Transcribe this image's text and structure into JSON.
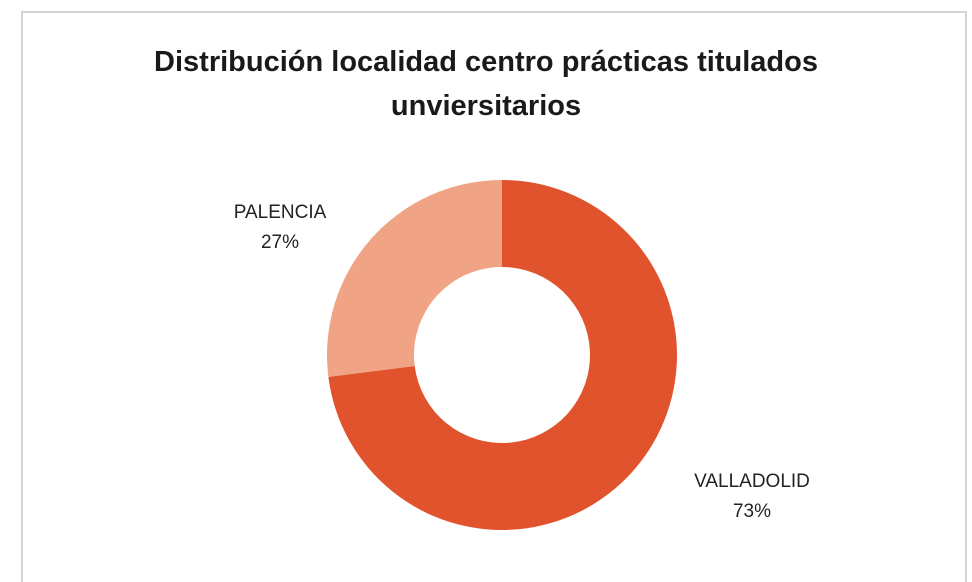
{
  "chart_data": {
    "type": "donut",
    "title": "Distribución localidad centro prácticas titulados unviersitarios",
    "categories": [
      "VALLADOLID",
      "PALENCIA"
    ],
    "values": [
      73,
      27
    ],
    "value_labels": [
      "73%",
      "27%"
    ],
    "colors": [
      "#e1532d",
      "#f0a385"
    ]
  }
}
